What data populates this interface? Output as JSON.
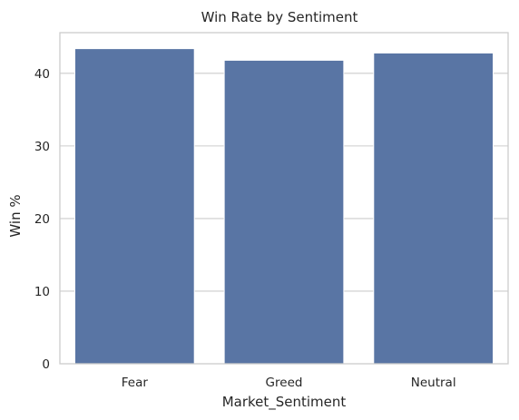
{
  "chart_data": {
    "type": "bar",
    "title": "Win Rate by Sentiment",
    "xlabel": "Market_Sentiment",
    "ylabel": "Win %",
    "categories": [
      "Fear",
      "Greed",
      "Neutral"
    ],
    "values": [
      43.4,
      41.8,
      42.8
    ],
    "ylim": [
      0,
      45.6
    ],
    "yticks": [
      "0",
      "10",
      "20",
      "30",
      "40"
    ],
    "grid": true,
    "colors": {
      "bar": "#5975a4",
      "grid": "#cccccc",
      "spine": "#cccccc",
      "text": "#262626"
    }
  }
}
